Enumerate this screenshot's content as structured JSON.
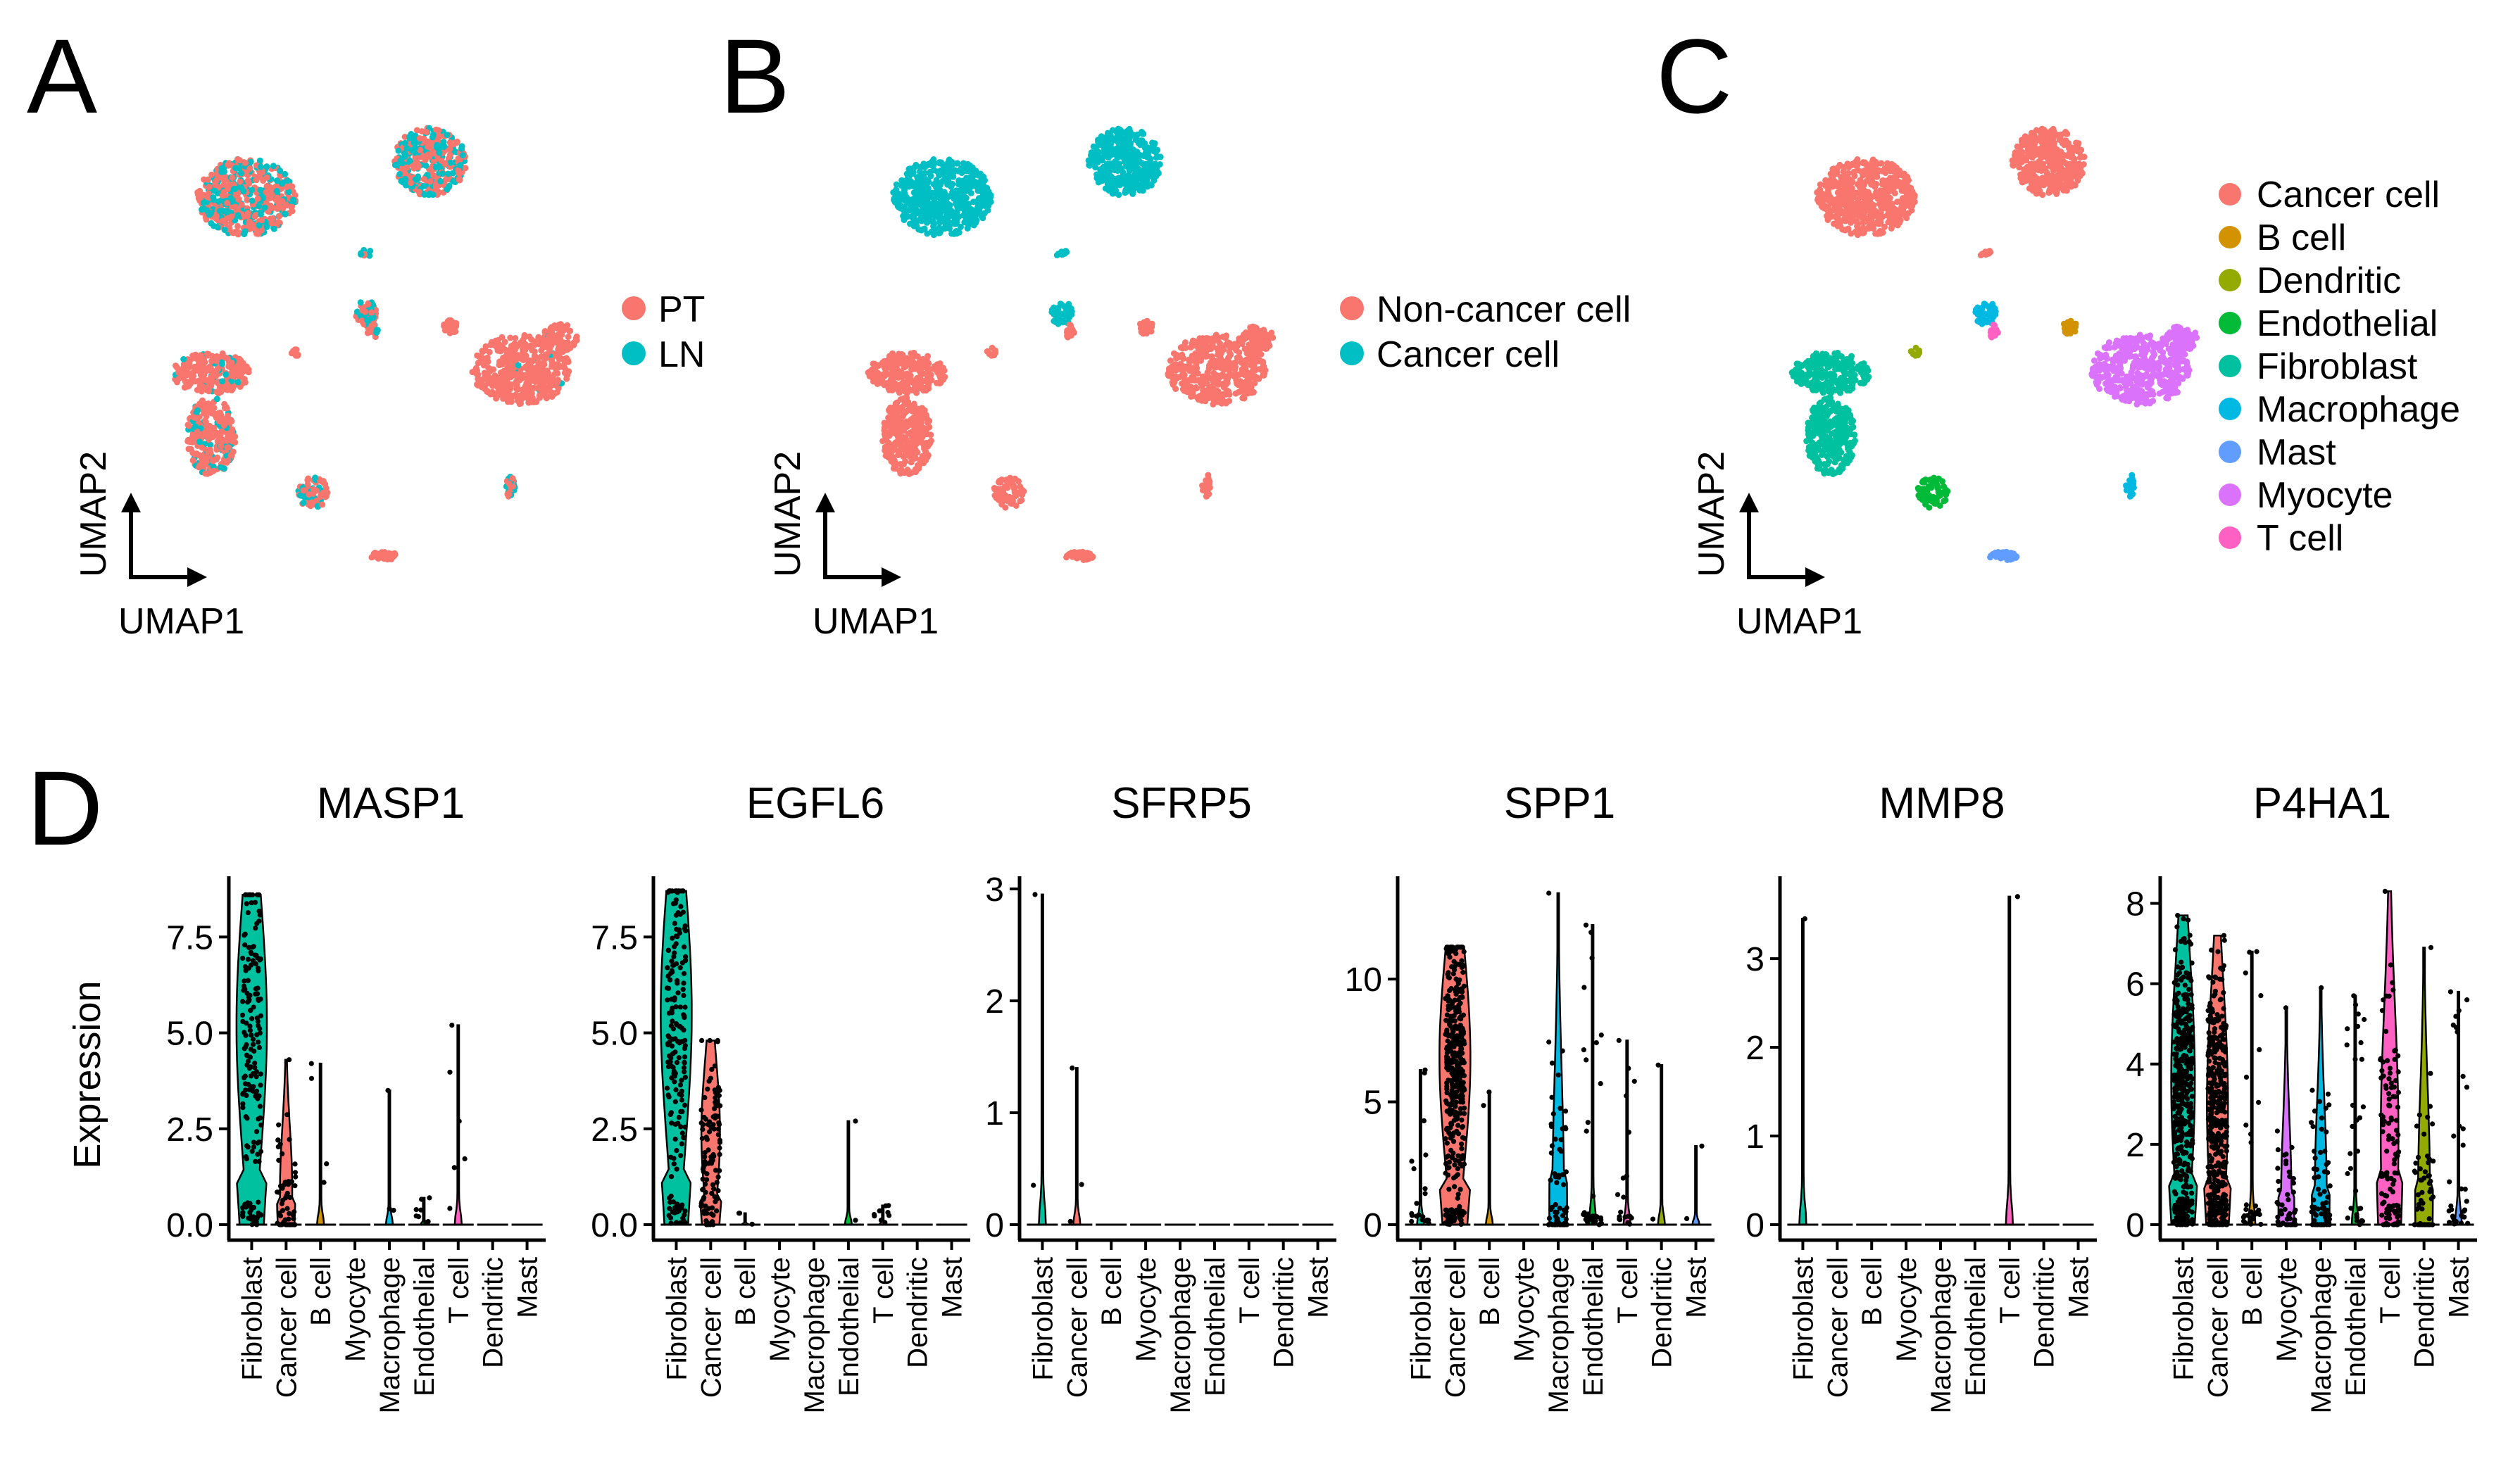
{
  "panels": {
    "A": {
      "label": "A",
      "umap_x_label": "UMAP1",
      "umap_y_label": "UMAP2",
      "legend": [
        {
          "name": "PT",
          "color": "#F8766D"
        },
        {
          "name": "LN",
          "color": "#00BFC4"
        }
      ]
    },
    "B": {
      "label": "B",
      "umap_x_label": "UMAP1",
      "umap_y_label": "UMAP2",
      "legend": [
        {
          "name": "Non-cancer cell",
          "color": "#F8766D"
        },
        {
          "name": "Cancer cell",
          "color": "#00BFC4"
        }
      ]
    },
    "C": {
      "label": "C",
      "umap_x_label": "UMAP1",
      "umap_y_label": "UMAP2",
      "legend": [
        {
          "name": "Cancer cell",
          "color": "#F8766D"
        },
        {
          "name": "B cell",
          "color": "#D39200"
        },
        {
          "name": "Dendritic",
          "color": "#93AA00"
        },
        {
          "name": "Endothelial",
          "color": "#00BA38"
        },
        {
          "name": "Fibroblast",
          "color": "#00C19F"
        },
        {
          "name": "Macrophage",
          "color": "#00B9E3"
        },
        {
          "name": "Mast",
          "color": "#619CFF"
        },
        {
          "name": "Myocyte",
          "color": "#DB72FB"
        },
        {
          "name": "T cell",
          "color": "#FF61C3"
        }
      ]
    },
    "D": {
      "label": "D",
      "ylabel": "Expression"
    }
  },
  "chart_data": [
    {
      "type": "violin",
      "title": "MASP1",
      "categories": [
        "Fibroblast",
        "Cancer cell",
        "B cell",
        "Myocyte",
        "Macrophage",
        "Endothelial",
        "T cell",
        "Dendritic",
        "Mast"
      ],
      "yticks": [
        0.0,
        2.5,
        5.0,
        7.5
      ],
      "ytick_labels": [
        "0.0",
        "2.5",
        "5.0",
        "7.5"
      ],
      "ylim": [
        0,
        8.9
      ],
      "max": [
        8.6,
        4.3,
        4.2,
        0,
        3.5,
        0.7,
        5.2,
        0,
        0
      ],
      "median": [
        5.2,
        0.9,
        0,
        0,
        0,
        0,
        0,
        0,
        0
      ],
      "ncells": [
        180,
        60,
        4,
        0,
        3,
        8,
        6,
        0,
        0
      ],
      "fill": [
        "#00C19F",
        "#F8766D",
        "#D39200",
        "#DB72FB",
        "#00B9E3",
        "#00BA38",
        "#FF61C3",
        "#93AA00",
        "#619CFF"
      ]
    },
    {
      "type": "violin",
      "title": "EGFL6",
      "categories": [
        "Fibroblast",
        "Cancer cell",
        "B cell",
        "Myocyte",
        "Macrophage",
        "Endothelial",
        "T cell",
        "Dendritic",
        "Mast"
      ],
      "yticks": [
        0.0,
        2.5,
        5.0,
        7.5
      ],
      "ytick_labels": [
        "0.0",
        "2.5",
        "5.0",
        "7.5"
      ],
      "ylim": [
        0,
        8.9
      ],
      "max": [
        8.7,
        4.8,
        0.3,
        0,
        0,
        2.7,
        0.5,
        0,
        0
      ],
      "median": [
        5.5,
        2.4,
        0,
        0,
        0,
        0,
        0,
        0,
        0
      ],
      "ncells": [
        190,
        110,
        3,
        0,
        0,
        2,
        10,
        0,
        0
      ],
      "fill": [
        "#00C19F",
        "#F8766D",
        "#D39200",
        "#DB72FB",
        "#00B9E3",
        "#00BA38",
        "#FF61C3",
        "#93AA00",
        "#619CFF"
      ]
    },
    {
      "type": "violin",
      "title": "SFRP5",
      "categories": [
        "Fibroblast",
        "Cancer cell",
        "B cell",
        "Myocyte",
        "Macrophage",
        "Endothelial",
        "T cell",
        "Dendritic",
        "Mast"
      ],
      "yticks": [
        0,
        1,
        2,
        3
      ],
      "ytick_labels": [
        "0",
        "1",
        "2",
        "3"
      ],
      "ylim": [
        0,
        3.05
      ],
      "max": [
        2.95,
        1.4,
        0,
        0,
        0,
        0,
        0,
        0,
        0
      ],
      "median": [
        0,
        0,
        0,
        0,
        0,
        0,
        0,
        0,
        0
      ],
      "ncells": [
        2,
        3,
        0,
        0,
        0,
        0,
        0,
        0,
        0
      ],
      "fill": [
        "#00C19F",
        "#F8766D",
        "#D39200",
        "#DB72FB",
        "#00B9E3",
        "#00BA38",
        "#FF61C3",
        "#93AA00",
        "#619CFF"
      ]
    },
    {
      "type": "violin",
      "title": "SPP1",
      "categories": [
        "Fibroblast",
        "Cancer cell",
        "B cell",
        "Myocyte",
        "Macrophage",
        "Endothelial",
        "T cell",
        "Dendritic",
        "Mast"
      ],
      "yticks": [
        0,
        5,
        10
      ],
      "ytick_labels": [
        "0",
        "5",
        "10"
      ],
      "ylim": [
        0,
        13.9
      ],
      "max": [
        6.3,
        11.3,
        5.4,
        0,
        13.5,
        12.2,
        7.5,
        6.5,
        3.2
      ],
      "median": [
        0,
        6.8,
        0,
        0,
        0.8,
        0,
        0,
        0,
        0
      ],
      "ncells": [
        20,
        400,
        2,
        0,
        80,
        35,
        20,
        2,
        2
      ],
      "fill": [
        "#00C19F",
        "#F8766D",
        "#D39200",
        "#DB72FB",
        "#00B9E3",
        "#00BA38",
        "#FF61C3",
        "#93AA00",
        "#619CFF"
      ]
    },
    {
      "type": "violin",
      "title": "MMP8",
      "categories": [
        "Fibroblast",
        "Cancer cell",
        "B cell",
        "Myocyte",
        "Macrophage",
        "Endothelial",
        "T cell",
        "Dendritic",
        "Mast"
      ],
      "yticks": [
        0,
        1,
        2,
        3
      ],
      "ytick_labels": [
        "0",
        "1",
        "2",
        "3"
      ],
      "ylim": [
        0,
        3.85
      ],
      "max": [
        3.45,
        0,
        0,
        0,
        0,
        0,
        3.7,
        0,
        0
      ],
      "median": [
        0,
        0,
        0,
        0,
        0,
        0,
        0,
        0,
        0
      ],
      "ncells": [
        1,
        0,
        0,
        0,
        0,
        0,
        1,
        0,
        0
      ],
      "fill": [
        "#00C19F",
        "#F8766D",
        "#D39200",
        "#DB72FB",
        "#00B9E3",
        "#00BA38",
        "#FF61C3",
        "#93AA00",
        "#619CFF"
      ]
    },
    {
      "type": "violin",
      "title": "P4HA1",
      "categories": [
        "Fibroblast",
        "Cancer cell",
        "B cell",
        "Myocyte",
        "Macrophage",
        "Endothelial",
        "T cell",
        "Dendritic",
        "Mast"
      ],
      "yticks": [
        0,
        2,
        4,
        6,
        8
      ],
      "ytick_labels": [
        "0",
        "2",
        "4",
        "6",
        "8"
      ],
      "ylim": [
        0,
        8.5
      ],
      "max": [
        7.7,
        7.2,
        6.8,
        5.4,
        5.9,
        5.7,
        8.3,
        6.9,
        5.8
      ],
      "median": [
        3.6,
        3.0,
        0,
        0.5,
        0.8,
        0,
        2.2,
        0.8,
        0
      ],
      "ncells": [
        450,
        400,
        30,
        50,
        70,
        30,
        120,
        60,
        35
      ],
      "fill": [
        "#00C19F",
        "#F8766D",
        "#D39200",
        "#DB72FB",
        "#00B9E3",
        "#00BA38",
        "#FF61C3",
        "#93AA00",
        "#619CFF"
      ]
    }
  ]
}
